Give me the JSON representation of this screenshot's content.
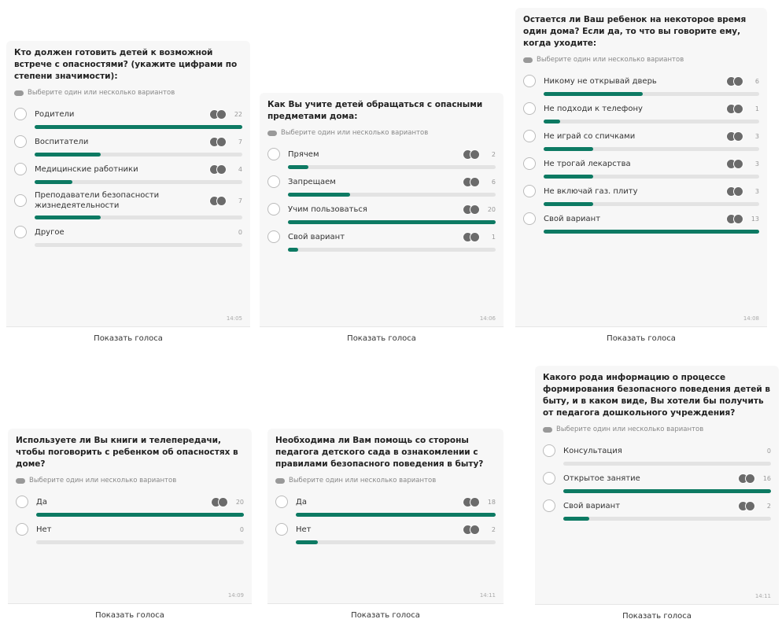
{
  "polls": [
    {
      "question": "Кто должен готовить детей к возможной встрече с опасностями? (укажите цифрами по степени значимости):",
      "hint": "Выберите один или несколько вариантов",
      "options": [
        {
          "label": "Родители",
          "count": 22
        },
        {
          "label": "Воспитатели",
          "count": 7
        },
        {
          "label": "Медицинские работники",
          "count": 4
        },
        {
          "label": "Преподаватели безопасности жизнедеятельности",
          "count": 7
        },
        {
          "label": "Другое",
          "count": 0
        }
      ],
      "time": "14:05",
      "button": "Показать голоса"
    },
    {
      "question": "Как Вы учите детей обращаться с опасными предметами дома:",
      "hint": "Выберите один или несколько вариантов",
      "options": [
        {
          "label": "Прячем",
          "count": 2
        },
        {
          "label": "Запрещаем",
          "count": 6
        },
        {
          "label": "Учим пользоваться",
          "count": 20
        },
        {
          "label": "Свой вариант",
          "count": 1
        }
      ],
      "time": "14:06",
      "button": "Показать голоса"
    },
    {
      "question": "Остается ли Ваш ребенок на некоторое время один дома? Если да, то что вы говорите ему, когда уходите:",
      "hint": "Выберите один или несколько вариантов",
      "options": [
        {
          "label": "Никому не открывай дверь",
          "count": 6
        },
        {
          "label": "Не подходи к телефону",
          "count": 1
        },
        {
          "label": "Не играй со спичками",
          "count": 3
        },
        {
          "label": "Не трогай лекарства",
          "count": 3
        },
        {
          "label": "Не включай газ. плиту",
          "count": 3
        },
        {
          "label": "Свой вариант",
          "count": 13
        }
      ],
      "time": "14:08",
      "button": "Показать голоса"
    },
    {
      "question": "Используете ли Вы книги и телепередачи, чтобы поговорить с ребенком об опасностях в доме?",
      "hint": "Выберите один или несколько вариантов",
      "options": [
        {
          "label": "Да",
          "count": 20
        },
        {
          "label": "Нет",
          "count": 0
        }
      ],
      "time": "14:09",
      "button": "Показать голоса"
    },
    {
      "question": "Необходима ли Вам помощь со стороны педагога детского сада в ознакомлении с правилами безопасного поведения в быту?",
      "hint": "Выберите один или несколько вариантов",
      "options": [
        {
          "label": "Да",
          "count": 18
        },
        {
          "label": "Нет",
          "count": 2
        }
      ],
      "time": "14:11",
      "button": "Показать голоса"
    },
    {
      "question": "Какого рода информацию о процессе формирования безопасного поведения детей в быту, и в каком виде, Вы хотели бы получить от педагога дошкольного учреждения?",
      "hint": "Выберите один или несколько вариантов",
      "options": [
        {
          "label": "Консультация",
          "count": 0
        },
        {
          "label": "Открытое занятие",
          "count": 16
        },
        {
          "label": "Свой вариант",
          "count": 2
        }
      ],
      "time": "14:11",
      "button": "Показать голоса"
    }
  ]
}
